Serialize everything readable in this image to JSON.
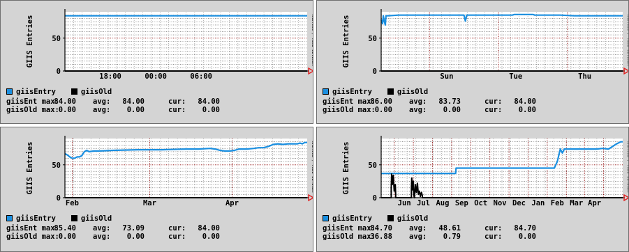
{
  "colors": {
    "giisEntry": "#1b8fe0",
    "giisOld": "#000000",
    "grid": "#000000",
    "vgrid_major": "#8a0000",
    "arrow": "#e02020",
    "plot_bg": "#ffffff",
    "panel_bg": "#d4d4d4"
  },
  "icons": {
    "legend_swatch": "square-swatch-icon",
    "axis_arrow": "arrow-right-icon"
  },
  "chart_data": [
    {
      "type": "line",
      "id": "panel-1",
      "ylabel": "GIIS Entries",
      "ytick_labels": [
        "0",
        "50"
      ],
      "ytick_values": [
        0,
        50
      ],
      "ylim": [
        0,
        90
      ],
      "xlim": [
        0,
        32
      ],
      "xtick_labels": [
        "18:00",
        "00:00",
        "06:00"
      ],
      "xtick_values": [
        6,
        12,
        18
      ],
      "major_vgrid": [],
      "watermark": "RRDTOOL / TOBI OETIKER",
      "grid": true,
      "series": [
        {
          "name": "giisEntry",
          "color_key": "giisEntry",
          "x": [
            0,
            32
          ],
          "y": [
            84,
            84
          ]
        },
        {
          "name": "giisOld",
          "color_key": "giisOld",
          "x": [
            0,
            32
          ],
          "y": [
            0,
            0
          ]
        }
      ],
      "legend": [
        "giisEntry",
        "giisOld"
      ],
      "stats": [
        {
          "label": "giisEnt",
          "max": "84.00",
          "avg": "84.00",
          "cur": "84.00"
        },
        {
          "label": "giisOld",
          "max": "0.00",
          "avg": "0.00",
          "cur": "0.00"
        }
      ],
      "stat_labels": {
        "max": "max:",
        "avg": "avg:",
        "cur": "cur:"
      }
    },
    {
      "type": "line",
      "id": "panel-2",
      "ylabel": "GIIS Entries",
      "ytick_labels": [
        "0",
        "50"
      ],
      "ytick_values": [
        0,
        50
      ],
      "ylim": [
        0,
        90
      ],
      "xlim": [
        0,
        7
      ],
      "xtick_labels": [
        "Sun",
        "Tue",
        "Thu"
      ],
      "xtick_values": [
        1.9,
        3.9,
        5.9
      ],
      "major_vgrid": [
        1.4,
        3.4,
        5.4
      ],
      "watermark": "RRDTOOL / TOBI OETIKER",
      "grid": true,
      "series": [
        {
          "name": "giisEntry",
          "color_key": "giisEntry",
          "x": [
            0,
            0.04,
            0.06,
            0.09,
            0.12,
            0.14,
            0.2,
            0.5,
            1.0,
            2.0,
            2.4,
            2.44,
            2.48,
            2.6,
            3.0,
            3.4,
            3.8,
            3.86,
            4.4,
            4.45,
            4.8,
            5.2,
            5.6,
            6.0,
            6.5,
            7.0
          ],
          "y": [
            78,
            72,
            84,
            76,
            70,
            84,
            84,
            85,
            85,
            85,
            85,
            76,
            85,
            85,
            85,
            85,
            85,
            86,
            86,
            85,
            85,
            85,
            84,
            84,
            84,
            84
          ]
        },
        {
          "name": "giisOld",
          "color_key": "giisOld",
          "x": [
            0,
            7
          ],
          "y": [
            0,
            0
          ]
        }
      ],
      "legend": [
        "giisEntry",
        "giisOld"
      ],
      "stats": [
        {
          "label": "giisEnt",
          "max": "86.00",
          "avg": "83.73",
          "cur": "84.00"
        },
        {
          "label": "giisOld",
          "max": "0.00",
          "avg": "0.00",
          "cur": "0.00"
        }
      ],
      "stat_labels": {
        "max": "max:",
        "avg": "avg:",
        "cur": "cur:"
      }
    },
    {
      "type": "line",
      "id": "panel-3",
      "ylabel": "GIIS Entries",
      "ytick_labels": [
        "0",
        "50"
      ],
      "ytick_values": [
        0,
        50
      ],
      "ylim": [
        0,
        90
      ],
      "xlim": [
        0,
        100
      ],
      "xtick_labels": [
        "Feb",
        "Mar",
        "Apr"
      ],
      "xtick_values": [
        3,
        35,
        69
      ],
      "major_vgrid": [
        3,
        35,
        69
      ],
      "watermark": "RRDTOOL / TOBI OETIKER",
      "grid": true,
      "series": [
        {
          "name": "giisEntry",
          "color_key": "giisEntry",
          "x": [
            0,
            1,
            2,
            3,
            4,
            5,
            6,
            7,
            8,
            9,
            10,
            12,
            14,
            20,
            30,
            40,
            50,
            55,
            60,
            62,
            64,
            66,
            68,
            70,
            72,
            75,
            78,
            80,
            82,
            84,
            86,
            88,
            90,
            92,
            94,
            96,
            97,
            98,
            99,
            100
          ],
          "y": [
            67,
            65,
            62,
            60,
            60,
            62,
            62,
            64,
            70,
            72,
            70,
            71,
            71,
            72,
            73,
            73,
            74,
            74,
            75,
            74,
            72,
            71,
            71,
            72,
            74,
            74,
            75,
            76,
            76,
            78,
            81,
            82,
            81,
            82,
            82,
            82,
            83,
            82,
            84,
            84
          ]
        },
        {
          "name": "giisOld",
          "color_key": "giisOld",
          "x": [
            0,
            100
          ],
          "y": [
            0,
            0
          ]
        }
      ],
      "legend": [
        "giisEntry",
        "giisOld"
      ],
      "stats": [
        {
          "label": "giisEnt",
          "max": "85.40",
          "avg": "73.09",
          "cur": "84.00"
        },
        {
          "label": "giisOld",
          "max": "0.00",
          "avg": "0.00",
          "cur": "0.00"
        }
      ],
      "stat_labels": {
        "max": "max:",
        "avg": "avg:",
        "cur": "cur:"
      }
    },
    {
      "type": "line",
      "id": "panel-4",
      "ylabel": "GIIS Entries",
      "ytick_labels": [
        "0",
        "50"
      ],
      "ytick_values": [
        0,
        50
      ],
      "ylim": [
        0,
        90
      ],
      "xlim": [
        0,
        12
      ],
      "xtick_labels": [
        "Jun",
        "Jul",
        "Aug",
        "Sep",
        "Oct",
        "Nov",
        "Dec",
        "Jan",
        "Feb",
        "Mar",
        "Apr"
      ],
      "xtick_values": [
        1.15,
        2.1,
        3.05,
        4.0,
        4.95,
        5.9,
        6.85,
        7.8,
        8.75,
        9.7,
        10.6
      ],
      "major_vgrid": [
        0.65,
        1.6,
        2.55,
        3.5,
        4.45,
        5.4,
        6.35,
        7.3,
        8.25,
        9.2,
        10.1,
        11.05
      ],
      "watermark": "RRDTOOL / TOBI OETIKER",
      "grid": true,
      "series": [
        {
          "name": "giisEntry",
          "color_key": "giisEntry",
          "x": [
            0,
            3.7,
            3.72,
            8.6,
            8.75,
            8.85,
            8.9,
            9.0,
            9.1,
            9.2,
            9.4,
            9.8,
            10.2,
            10.7,
            11.0,
            11.3,
            11.5,
            11.7,
            11.9,
            12.0
          ],
          "y": [
            37,
            37,
            45,
            45,
            55,
            68,
            74,
            68,
            74,
            74,
            74,
            74,
            74,
            74,
            75,
            74,
            78,
            82,
            85,
            85
          ]
        },
        {
          "name": "giisOld",
          "color_key": "giisOld",
          "x": [
            0,
            0.5,
            0.5,
            0.52,
            0.55,
            0.6,
            0.65,
            0.7,
            0.72,
            0.72,
            1.5,
            1.5,
            1.52,
            1.55,
            1.6,
            1.62,
            1.65,
            1.7,
            1.72,
            1.75,
            1.8,
            1.85,
            1.9,
            1.95,
            2.0,
            2.05,
            2.05,
            12.0
          ],
          "y": [
            0,
            0,
            14,
            36,
            20,
            34,
            10,
            20,
            5,
            0,
            0,
            15,
            30,
            12,
            25,
            5,
            0,
            20,
            13,
            8,
            22,
            5,
            10,
            2,
            8,
            3,
            0,
            0
          ]
        }
      ],
      "legend": [
        "giisEntry",
        "giisOld"
      ],
      "stats": [
        {
          "label": "giisEnt",
          "max": "84.70",
          "avg": "48.61",
          "cur": "84.70"
        },
        {
          "label": "giisOld",
          "max": "36.88",
          "avg": "0.79",
          "cur": "0.00"
        }
      ],
      "stat_labels": {
        "max": "max:",
        "avg": "avg:",
        "cur": "cur:"
      }
    }
  ]
}
